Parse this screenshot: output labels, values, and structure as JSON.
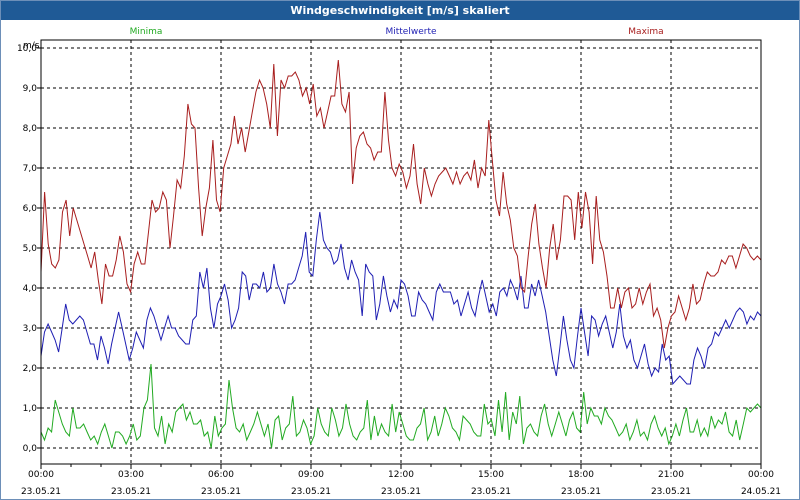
{
  "window": {
    "title": "Windgeschwindigkeit [m/s] skaliert"
  },
  "colors": {
    "minima": "#22aa22",
    "mittel": "#1f1fb3",
    "maxima": "#a81e1e",
    "grid": "#000000",
    "titlebar": "#1f5a96"
  },
  "chart_data": {
    "type": "line",
    "ylabel": "m/s",
    "ylim": [
      -0.4,
      10.2
    ],
    "xlim": [
      0,
      24
    ],
    "y_ticks": [
      "0,0",
      "1,0",
      "2,0",
      "3,0",
      "4,0",
      "5,0",
      "6,0",
      "7,0",
      "8,0",
      "9,0",
      "10,0"
    ],
    "x_ticks": [
      {
        "time": "00:00",
        "date": "23.05.21"
      },
      {
        "time": "03:00",
        "date": "23.05.21"
      },
      {
        "time": "06:00",
        "date": "23.05.21"
      },
      {
        "time": "09:00",
        "date": "23.05.21"
      },
      {
        "time": "12:00",
        "date": "23.05.21"
      },
      {
        "time": "15:00",
        "date": "23.05.21"
      },
      {
        "time": "18:00",
        "date": "23.05.21"
      },
      {
        "time": "21:00",
        "date": "23.05.21"
      },
      {
        "time": "00:00",
        "date": "24.05.21"
      }
    ],
    "grid": true,
    "legend": "top",
    "series": [
      {
        "name": "Minima",
        "values": [
          0.4,
          0.2,
          0.5,
          0.4,
          1.2,
          0.9,
          0.6,
          0.4,
          0.3,
          1.0,
          0.5,
          0.5,
          0.6,
          0.4,
          0.2,
          0.3,
          0.1,
          0.4,
          0.6,
          0.3,
          0.0,
          0.4,
          0.4,
          0.3,
          0.1,
          0.3,
          0.6,
          0.2,
          0.3,
          1.0,
          1.2,
          2.1,
          0.5,
          0.3,
          0.8,
          0.1,
          0.6,
          0.4,
          0.9,
          1.0,
          1.1,
          0.7,
          0.9,
          0.6,
          0.6,
          0.7,
          0.3,
          0.4,
          0.0,
          0.8,
          0.3,
          0.5,
          0.6,
          1.7,
          1.0,
          0.5,
          0.4,
          0.6,
          0.2,
          0.4,
          0.6,
          0.9,
          0.6,
          0.3,
          0.6,
          0.0,
          0.7,
          0.8,
          0.2,
          0.5,
          0.6,
          1.3,
          0.3,
          0.4,
          0.7,
          0.5,
          0.1,
          0.3,
          1.0,
          0.6,
          0.4,
          0.3,
          1.0,
          0.7,
          0.3,
          0.5,
          1.1,
          0.6,
          0.3,
          0.2,
          0.4,
          0.5,
          1.2,
          0.2,
          0.8,
          0.3,
          0.6,
          0.4,
          0.3,
          1.1,
          0.4,
          0.9,
          0.6,
          0.3,
          0.2,
          0.2,
          0.5,
          0.6,
          1.0,
          0.2,
          0.4,
          0.8,
          0.3,
          0.6,
          1.0,
          0.8,
          0.5,
          0.4,
          0.2,
          0.8,
          0.7,
          0.6,
          0.4,
          0.3,
          0.3,
          1.1,
          0.6,
          0.7,
          0.3,
          1.2,
          0.4,
          1.4,
          0.2,
          0.9,
          0.6,
          1.3,
          0.1,
          0.5,
          0.6,
          0.4,
          0.3,
          0.8,
          1.1,
          0.6,
          0.3,
          0.6,
          0.9,
          0.6,
          0.3,
          0.7,
          0.9,
          0.5,
          0.4,
          1.4,
          0.6,
          1.0,
          0.8,
          0.8,
          0.6,
          1.0,
          0.8,
          0.7,
          0.5,
          0.3,
          0.4,
          0.6,
          0.2,
          0.4,
          0.7,
          0.3,
          0.4,
          0.2,
          0.6,
          0.8,
          0.5,
          0.3,
          0.5,
          0.1,
          0.3,
          0.6,
          0.3,
          0.7,
          1.0,
          0.4,
          0.4,
          0.7,
          0.3,
          0.5,
          0.3,
          0.8,
          0.5,
          0.7,
          0.6,
          0.9,
          0.4,
          0.3,
          0.7,
          0.2,
          0.6,
          1.0,
          0.9,
          1.0,
          1.1,
          1.0
        ]
      },
      {
        "name": "Mittelwerte",
        "values": [
          2.3,
          2.9,
          3.1,
          2.9,
          2.7,
          2.4,
          3.0,
          3.6,
          3.2,
          3.1,
          3.2,
          3.3,
          3.2,
          2.9,
          2.6,
          2.6,
          2.2,
          2.8,
          2.5,
          2.1,
          2.6,
          3.0,
          3.4,
          3.0,
          2.6,
          2.2,
          2.5,
          2.9,
          2.7,
          2.5,
          3.2,
          3.5,
          3.3,
          3.0,
          2.7,
          3.0,
          3.3,
          3.0,
          3.0,
          2.8,
          2.7,
          2.6,
          2.6,
          3.2,
          3.3,
          4.4,
          4.0,
          4.5,
          3.5,
          3.0,
          3.6,
          3.8,
          4.1,
          3.7,
          3.0,
          3.2,
          3.5,
          4.4,
          4.3,
          3.7,
          4.1,
          4.1,
          4.0,
          4.4,
          3.9,
          4.0,
          4.6,
          4.1,
          3.9,
          3.6,
          4.1,
          4.1,
          4.2,
          4.5,
          4.8,
          5.4,
          4.4,
          4.3,
          5.2,
          5.9,
          5.2,
          5.0,
          4.9,
          4.6,
          4.7,
          5.1,
          4.5,
          4.2,
          4.7,
          4.4,
          4.2,
          3.3,
          4.6,
          4.4,
          4.3,
          3.2,
          3.6,
          4.3,
          3.8,
          3.4,
          3.7,
          3.5,
          4.2,
          4.1,
          3.8,
          3.3,
          3.3,
          3.9,
          3.7,
          3.6,
          3.4,
          3.2,
          3.9,
          4.1,
          3.9,
          3.9,
          3.9,
          3.6,
          3.7,
          3.3,
          3.6,
          3.9,
          3.5,
          3.3,
          3.8,
          4.2,
          3.8,
          3.4,
          3.6,
          3.3,
          3.9,
          4.0,
          3.8,
          4.2,
          4.0,
          3.7,
          4.3,
          3.5,
          3.5,
          4.1,
          3.8,
          4.2,
          3.8,
          3.4,
          2.8,
          2.2,
          1.8,
          2.5,
          3.3,
          2.7,
          2.2,
          2.0,
          2.8,
          3.5,
          2.9,
          2.3,
          3.3,
          3.2,
          2.8,
          3.1,
          3.3,
          2.9,
          2.5,
          2.9,
          3.6,
          2.8,
          2.5,
          2.7,
          2.2,
          2.0,
          2.3,
          2.6,
          2.1,
          1.8,
          2.0,
          1.9,
          2.6,
          2.2,
          2.3,
          1.6,
          1.7,
          1.8,
          1.7,
          1.6,
          1.6,
          2.2,
          2.5,
          2.3,
          2.0,
          2.5,
          2.6,
          2.9,
          2.8,
          3.0,
          3.2,
          3.0,
          3.2,
          3.4,
          3.5,
          3.4,
          3.1,
          3.3,
          3.2,
          3.4,
          3.3
        ]
      },
      {
        "name": "Maxima",
        "values": [
          4.4,
          6.4,
          5.1,
          4.6,
          4.5,
          4.7,
          5.9,
          6.2,
          5.3,
          6.0,
          5.7,
          5.4,
          5.1,
          4.8,
          4.5,
          4.9,
          4.2,
          3.6,
          4.6,
          4.3,
          4.3,
          4.7,
          5.3,
          4.9,
          4.1,
          3.9,
          4.6,
          4.9,
          4.6,
          4.6,
          5.4,
          6.2,
          5.9,
          6.0,
          6.4,
          6.2,
          5.0,
          5.8,
          6.7,
          6.5,
          7.3,
          8.6,
          8.1,
          8.0,
          6.5,
          5.3,
          6.0,
          6.5,
          7.7,
          6.2,
          5.9,
          7.0,
          7.3,
          7.6,
          8.3,
          7.6,
          8.0,
          7.4,
          7.9,
          8.4,
          8.9,
          9.2,
          9.0,
          8.6,
          8.0,
          9.6,
          7.8,
          9.2,
          9.0,
          9.3,
          9.3,
          9.4,
          9.2,
          8.8,
          9.0,
          8.6,
          9.1,
          8.3,
          8.5,
          8.0,
          8.4,
          8.8,
          8.8,
          9.7,
          8.6,
          8.4,
          8.9,
          6.6,
          7.5,
          7.8,
          7.9,
          7.6,
          7.5,
          7.2,
          7.4,
          7.4,
          8.9,
          7.7,
          7.0,
          6.8,
          7.1,
          6.9,
          6.5,
          6.8,
          7.6,
          6.6,
          6.1,
          7.0,
          6.6,
          6.3,
          6.6,
          6.8,
          6.9,
          7.0,
          6.8,
          6.6,
          6.9,
          6.6,
          6.8,
          6.9,
          6.7,
          7.2,
          6.5,
          7.0,
          6.8,
          8.2,
          7.2,
          6.2,
          5.8,
          6.9,
          6.1,
          5.7,
          5.0,
          4.8,
          4.0,
          3.9,
          4.8,
          5.6,
          6.1,
          5.1,
          4.5,
          4.0,
          5.0,
          5.6,
          4.7,
          5.2,
          6.3,
          6.3,
          6.2,
          5.2,
          6.4,
          5.5,
          6.4,
          5.9,
          4.6,
          6.3,
          5.2,
          4.9,
          4.3,
          3.5,
          3.5,
          4.0,
          3.5,
          3.9,
          4.0,
          3.5,
          3.6,
          4.0,
          3.6,
          3.9,
          4.1,
          3.3,
          3.5,
          3.2,
          2.5,
          3.0,
          3.3,
          3.4,
          3.8,
          3.5,
          3.2,
          3.5,
          4.1,
          3.6,
          3.7,
          4.1,
          4.4,
          4.3,
          4.3,
          4.4,
          4.7,
          4.6,
          4.8,
          4.8,
          4.5,
          4.8,
          5.1,
          5.0,
          4.8,
          4.7,
          4.8,
          4.7
        ]
      }
    ]
  }
}
